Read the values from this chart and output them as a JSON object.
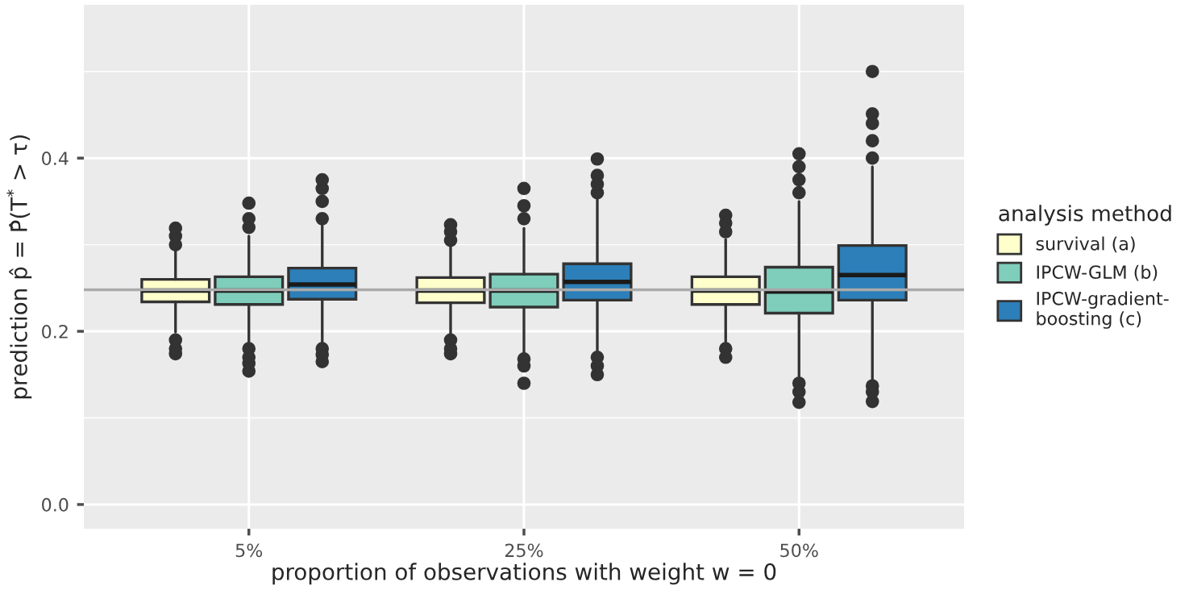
{
  "chart_data": {
    "type": "box",
    "categories": [
      "5%",
      "25%",
      "50%"
    ],
    "xlabel": "proportion of observations with weight w = 0",
    "ylabel": "prediction p̂ = P̂(T$^{*}$ > τ)",
    "legend_title": "analysis method",
    "legend": "right",
    "grid": true,
    "ylim": [
      -0.028,
      0.577
    ],
    "yticks": [
      {
        "value": 0.0,
        "label": "0.0"
      },
      {
        "value": 0.2,
        "label": "0.2"
      },
      {
        "value": 0.4,
        "label": "0.4"
      }
    ],
    "ref_lines": [
      {
        "axis": "y",
        "value": 0.248,
        "color": "#aaaaaa"
      }
    ],
    "series": [
      {
        "name": "survival (a)",
        "color": "#ffffcc",
        "boxes": [
          {
            "low": 0.199,
            "q1": 0.234,
            "median": 0.247,
            "q3": 0.26,
            "high": 0.295,
            "outliers": [
              0.3,
              0.31,
              0.319,
              0.19,
              0.18,
              0.174
            ]
          },
          {
            "low": 0.196,
            "q1": 0.233,
            "median": 0.247,
            "q3": 0.262,
            "high": 0.299,
            "outliers": [
              0.305,
              0.315,
              0.323,
              0.19,
              0.18,
              0.174
            ]
          },
          {
            "low": 0.188,
            "q1": 0.231,
            "median": 0.247,
            "q3": 0.263,
            "high": 0.306,
            "outliers": [
              0.315,
              0.325,
              0.334,
              0.18,
              0.17
            ]
          }
        ]
      },
      {
        "name": "IPCW-GLM (b)",
        "color": "#7fcdbb",
        "boxes": [
          {
            "low": 0.185,
            "q1": 0.231,
            "median": 0.247,
            "q3": 0.263,
            "high": 0.31,
            "outliers": [
              0.32,
              0.33,
              0.348,
              0.18,
              0.17,
              0.163,
              0.154
            ]
          },
          {
            "low": 0.174,
            "q1": 0.228,
            "median": 0.247,
            "q3": 0.266,
            "high": 0.319,
            "outliers": [
              0.33,
              0.345,
              0.365,
              0.168,
              0.16,
              0.14
            ]
          },
          {
            "low": 0.145,
            "q1": 0.221,
            "median": 0.246,
            "q3": 0.274,
            "high": 0.35,
            "outliers": [
              0.36,
              0.375,
              0.39,
              0.405,
              0.14,
              0.13,
              0.118
            ]
          }
        ]
      },
      {
        "name": "IPCW-gradient-\nboosting (c)",
        "color": "#2c7fb8",
        "boxes": [
          {
            "low": 0.186,
            "q1": 0.237,
            "median": 0.254,
            "q3": 0.273,
            "high": 0.322,
            "outliers": [
              0.33,
              0.35,
              0.365,
              0.375,
              0.18,
              0.173,
              0.165
            ]
          },
          {
            "low": 0.176,
            "q1": 0.236,
            "median": 0.257,
            "q3": 0.278,
            "high": 0.353,
            "outliers": [
              0.36,
              0.37,
              0.38,
              0.399,
              0.17,
              0.16,
              0.15
            ]
          },
          {
            "low": 0.143,
            "q1": 0.236,
            "median": 0.265,
            "q3": 0.299,
            "high": 0.39,
            "outliers": [
              0.4,
              0.42,
              0.44,
              0.451,
              0.5,
              0.137,
              0.13,
              0.119
            ]
          }
        ]
      }
    ]
  }
}
